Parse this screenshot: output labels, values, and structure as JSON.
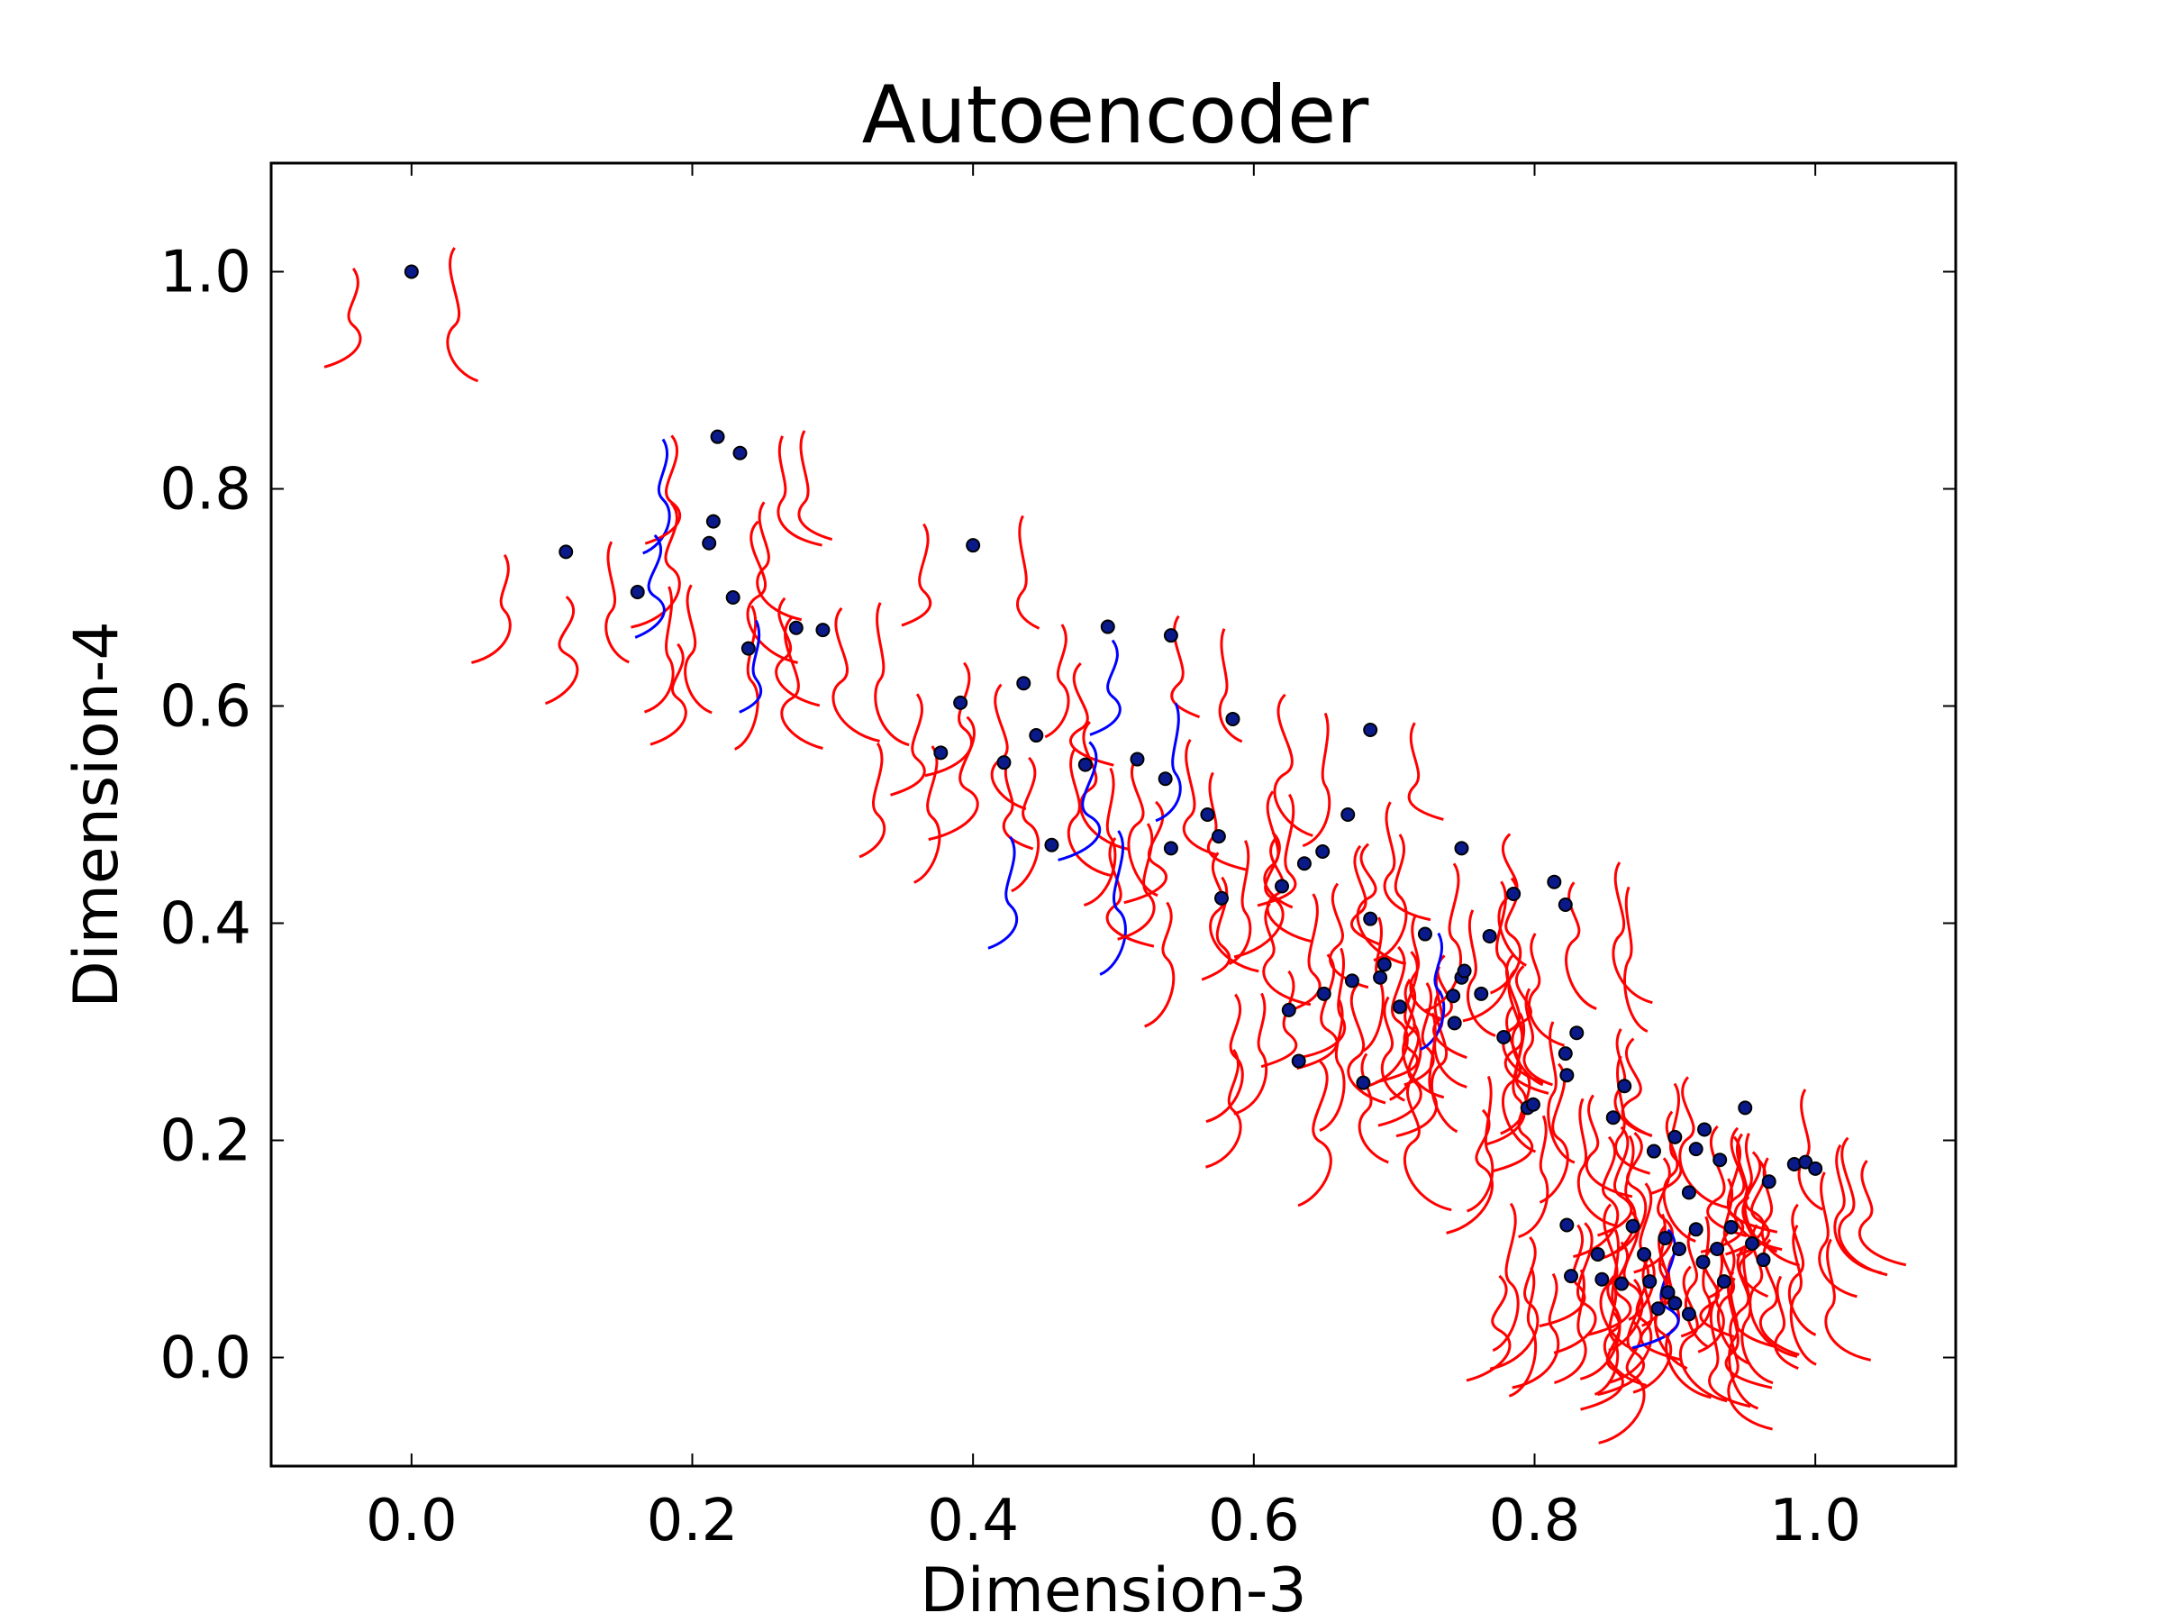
{
  "chart_data": {
    "type": "scatter",
    "title": "Autoencoder",
    "xlabel": "Dimension-3",
    "ylabel": "Dimension-4",
    "xlim": [
      -0.1,
      1.1
    ],
    "ylim": [
      -0.1,
      1.1
    ],
    "xticks": [
      "0.0",
      "0.2",
      "0.4",
      "0.6",
      "0.8",
      "1.0"
    ],
    "yticks": [
      "0.0",
      "0.2",
      "0.4",
      "0.6",
      "0.8",
      "1.0"
    ],
    "grid": false,
    "legend": "none",
    "colors": {
      "point_fill": "#0a1a8a",
      "point_edge": "#000000",
      "glyph_red": "#ff0000",
      "glyph_blue": "#0000ff"
    },
    "points": [
      [
        0.0,
        1.0
      ],
      [
        0.11,
        0.742
      ],
      [
        0.161,
        0.705
      ],
      [
        0.218,
        0.848
      ],
      [
        0.234,
        0.833
      ],
      [
        0.215,
        0.77
      ],
      [
        0.212,
        0.75
      ],
      [
        0.229,
        0.7
      ],
      [
        0.24,
        0.653
      ],
      [
        0.274,
        0.672
      ],
      [
        0.293,
        0.67
      ],
      [
        0.4,
        0.748
      ],
      [
        0.391,
        0.603
      ],
      [
        0.377,
        0.557
      ],
      [
        0.436,
        0.621
      ],
      [
        0.445,
        0.573
      ],
      [
        0.422,
        0.548
      ],
      [
        0.48,
        0.546
      ],
      [
        0.496,
        0.673
      ],
      [
        0.517,
        0.551
      ],
      [
        0.541,
        0.665
      ],
      [
        0.537,
        0.533
      ],
      [
        0.456,
        0.472
      ],
      [
        0.541,
        0.469
      ],
      [
        0.567,
        0.5
      ],
      [
        0.575,
        0.48
      ],
      [
        0.585,
        0.588
      ],
      [
        0.577,
        0.423
      ],
      [
        0.62,
        0.434
      ],
      [
        0.636,
        0.455
      ],
      [
        0.649,
        0.466
      ],
      [
        0.667,
        0.5
      ],
      [
        0.683,
        0.578
      ],
      [
        0.683,
        0.404
      ],
      [
        0.625,
        0.32
      ],
      [
        0.632,
        0.273
      ],
      [
        0.65,
        0.335
      ],
      [
        0.67,
        0.347
      ],
      [
        0.678,
        0.253
      ],
      [
        0.69,
        0.35
      ],
      [
        0.693,
        0.362
      ],
      [
        0.704,
        0.323
      ],
      [
        0.722,
        0.39
      ],
      [
        0.742,
        0.333
      ],
      [
        0.743,
        0.308
      ],
      [
        0.748,
        0.469
      ],
      [
        0.748,
        0.35
      ],
      [
        0.75,
        0.356
      ],
      [
        0.762,
        0.335
      ],
      [
        0.768,
        0.388
      ],
      [
        0.785,
        0.427
      ],
      [
        0.814,
        0.438
      ],
      [
        0.822,
        0.417
      ],
      [
        0.778,
        0.295
      ],
      [
        0.795,
        0.23
      ],
      [
        0.799,
        0.233
      ],
      [
        0.83,
        0.299
      ],
      [
        0.822,
        0.28
      ],
      [
        0.823,
        0.26
      ],
      [
        0.864,
        0.25
      ],
      [
        0.856,
        0.221
      ],
      [
        0.885,
        0.19
      ],
      [
        0.9,
        0.203
      ],
      [
        0.915,
        0.192
      ],
      [
        0.921,
        0.21
      ],
      [
        0.95,
        0.23
      ],
      [
        0.932,
        0.182
      ],
      [
        0.985,
        0.178
      ],
      [
        0.993,
        0.18
      ],
      [
        1.0,
        0.174
      ],
      [
        0.967,
        0.162
      ],
      [
        0.91,
        0.152
      ],
      [
        0.823,
        0.122
      ],
      [
        0.87,
        0.121
      ],
      [
        0.845,
        0.095
      ],
      [
        0.826,
        0.075
      ],
      [
        0.848,
        0.072
      ],
      [
        0.862,
        0.068
      ],
      [
        0.878,
        0.095
      ],
      [
        0.893,
        0.11
      ],
      [
        0.903,
        0.1
      ],
      [
        0.882,
        0.07
      ],
      [
        0.895,
        0.06
      ],
      [
        0.9,
        0.05
      ],
      [
        0.91,
        0.04
      ],
      [
        0.92,
        0.088
      ],
      [
        0.93,
        0.1
      ],
      [
        0.94,
        0.12
      ],
      [
        0.955,
        0.105
      ],
      [
        0.963,
        0.09
      ],
      [
        0.915,
        0.118
      ],
      [
        0.935,
        0.07
      ],
      [
        0.888,
        0.045
      ]
    ],
    "blue_glyph_points": [
      [
        0.212,
        0.75
      ],
      [
        0.218,
        0.848
      ],
      [
        0.234,
        0.653
      ],
      [
        0.293,
        0.67
      ],
      [
        0.517,
        0.551
      ],
      [
        0.541,
        0.665
      ],
      [
        0.541,
        0.469
      ],
      [
        0.585,
        0.588
      ],
      [
        0.456,
        0.472
      ],
      [
        0.496,
        0.546
      ],
      [
        0.768,
        0.388
      ],
      [
        0.814,
        0.417
      ],
      [
        0.885,
        0.05
      ],
      [
        0.9,
        0.07
      ],
      [
        0.915,
        0.04
      ],
      [
        0.93,
        0.1
      ]
    ]
  }
}
